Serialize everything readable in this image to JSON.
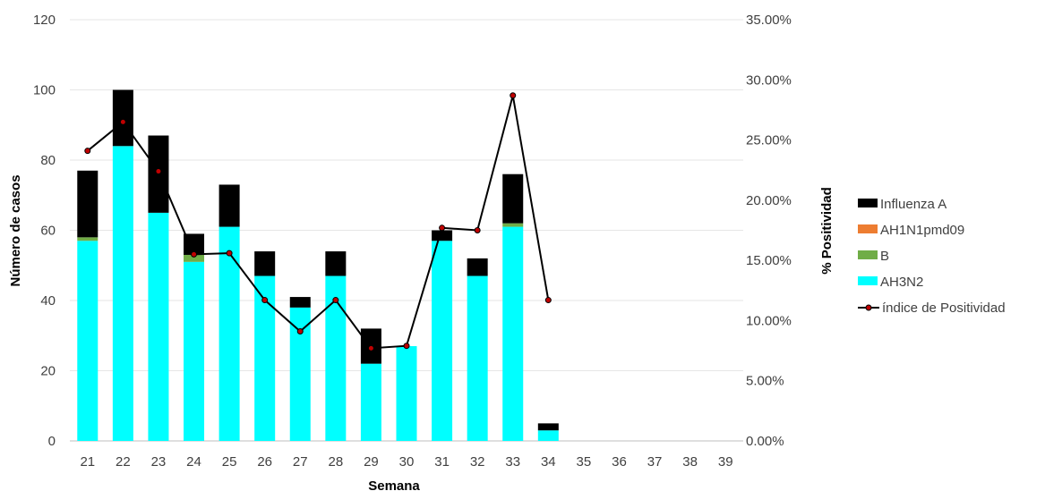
{
  "chart_data": {
    "type": "bar",
    "stacked": true,
    "categories": [
      "21",
      "22",
      "23",
      "24",
      "25",
      "26",
      "27",
      "28",
      "29",
      "30",
      "31",
      "32",
      "33",
      "34",
      "35",
      "36",
      "37",
      "38",
      "39"
    ],
    "series": [
      {
        "name": "AH3N2",
        "color": "#00FFFF",
        "values": [
          57,
          84,
          65,
          51,
          61,
          47,
          38,
          47,
          22,
          27,
          57,
          47,
          61,
          3,
          0,
          0,
          0,
          0,
          0
        ]
      },
      {
        "name": "B",
        "color": "#70AD47",
        "values": [
          1,
          0,
          0,
          2,
          0,
          0,
          0,
          0,
          0,
          0,
          0,
          0,
          1,
          0,
          0,
          0,
          0,
          0,
          0
        ]
      },
      {
        "name": "AH1N1pmd09",
        "color": "#ED7D31",
        "values": [
          0,
          0,
          0,
          0,
          0,
          0,
          0,
          0,
          0,
          0,
          0,
          0,
          0,
          0,
          0,
          0,
          0,
          0,
          0
        ]
      },
      {
        "name": "Influenza A",
        "color": "#000000",
        "values": [
          19,
          16,
          22,
          6,
          12,
          7,
          3,
          7,
          10,
          0,
          3,
          5,
          14,
          2,
          0,
          0,
          0,
          0,
          0
        ]
      }
    ],
    "line_series": {
      "name": "índice de Positividad",
      "axis": "right",
      "color": "#000000",
      "marker_color": "#C00000",
      "values": [
        0.241,
        0.265,
        0.224,
        0.155,
        0.156,
        0.117,
        0.091,
        0.117,
        0.077,
        0.079,
        0.177,
        0.175,
        0.287,
        0.117
      ]
    },
    "xlabel": "Semana",
    "ylabel": "Número de casos",
    "y2label": "% Positividad",
    "ylim": [
      0,
      120
    ],
    "yticks": [
      "0",
      "20",
      "40",
      "60",
      "80",
      "100",
      "120"
    ],
    "y2lim": [
      0,
      0.35
    ],
    "y2ticks": [
      "0.00%",
      "5.00%",
      "10.00%",
      "15.00%",
      "20.00%",
      "25.00%",
      "30.00%",
      "35.00%"
    ],
    "legend_order": [
      "Influenza A",
      "AH1N1pmd09",
      "B",
      "AH3N2",
      "índice de Positividad"
    ],
    "legend_position": "right",
    "grid": true
  }
}
